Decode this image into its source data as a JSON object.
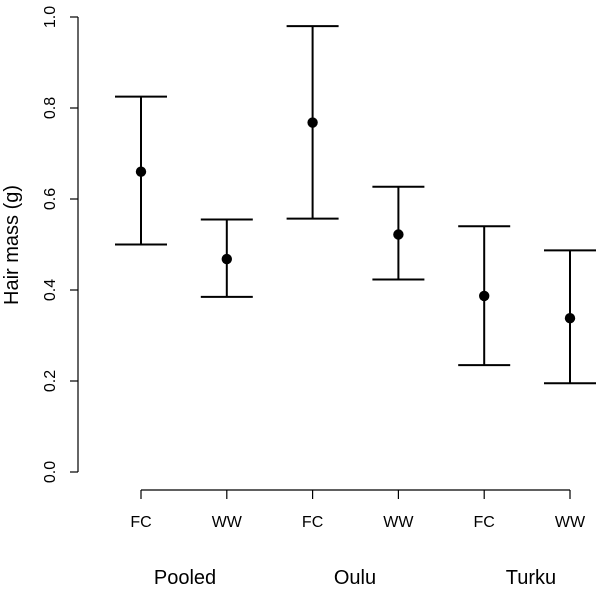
{
  "chart_data": {
    "type": "scatter",
    "ylabel": "Hair mass (g)",
    "ylim": [
      0,
      1
    ],
    "yticks": [
      "0.0",
      "0.2",
      "0.4",
      "0.6",
      "0.8",
      "1.0"
    ],
    "grid": false,
    "categories": [
      "FC",
      "WW",
      "FC",
      "WW",
      "FC",
      "WW"
    ],
    "groups": [
      "Pooled",
      "Oulu",
      "Turku"
    ],
    "points": [
      {
        "category": "FC",
        "group": "Pooled",
        "mean": 0.66,
        "lower": 0.5,
        "upper": 0.825
      },
      {
        "category": "WW",
        "group": "Pooled",
        "mean": 0.468,
        "lower": 0.385,
        "upper": 0.555
      },
      {
        "category": "FC",
        "group": "Oulu",
        "mean": 0.768,
        "lower": 0.557,
        "upper": 0.98
      },
      {
        "category": "WW",
        "group": "Oulu",
        "mean": 0.522,
        "lower": 0.423,
        "upper": 0.627
      },
      {
        "category": "FC",
        "group": "Turku",
        "mean": 0.387,
        "lower": 0.235,
        "upper": 0.54
      },
      {
        "category": "WW",
        "group": "Turku",
        "mean": 0.338,
        "lower": 0.195,
        "upper": 0.487
      }
    ],
    "colors": {
      "marker": "#000000",
      "line": "#000000"
    }
  }
}
